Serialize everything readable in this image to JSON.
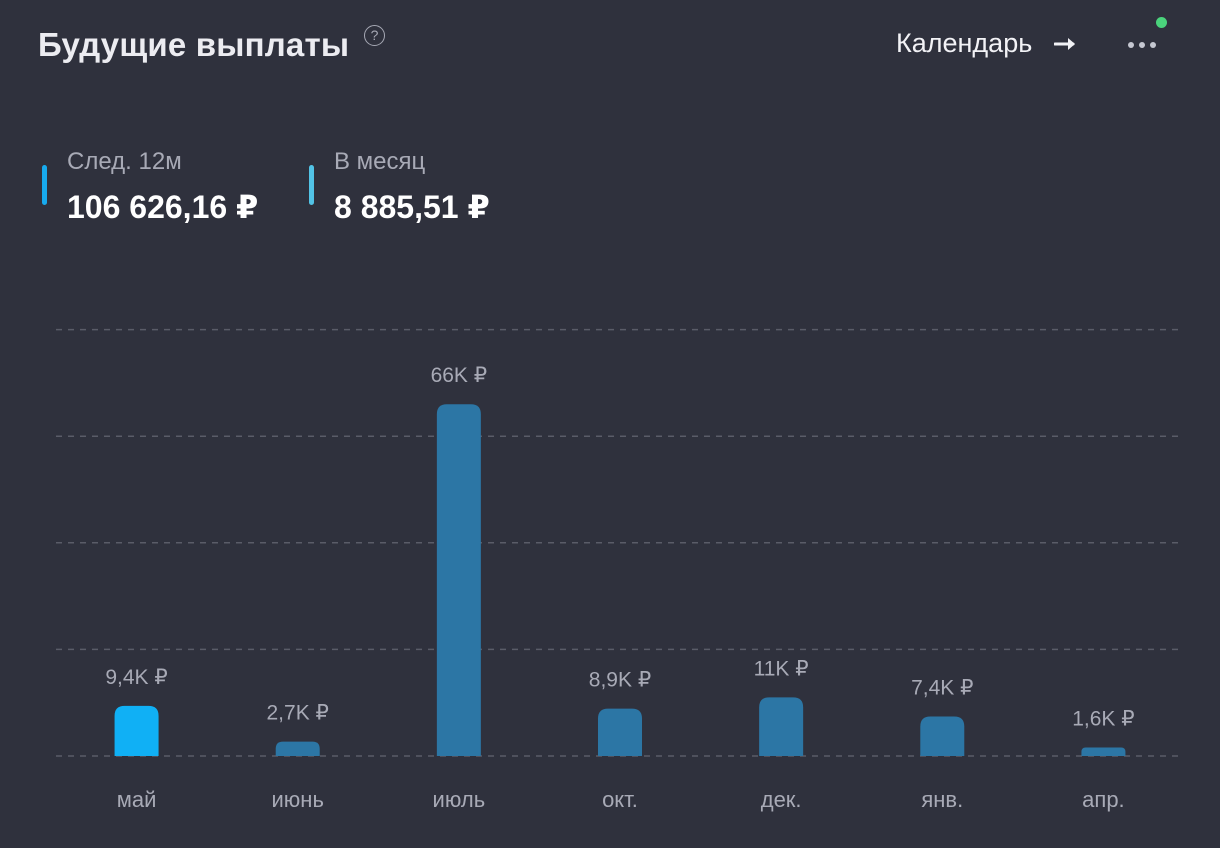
{
  "header": {
    "title": "Будущие выплаты",
    "help_icon": "question-circle-icon",
    "help_glyph": "?",
    "calendar_label": "Календарь",
    "calendar_icon": "arrow-right-icon",
    "more_icon": "more-horizontal-icon",
    "notify_color": "#4ad37c"
  },
  "stats": {
    "next12": {
      "caption": "След. 12м",
      "value": "106 626,16 ₽",
      "color": "#17aaee"
    },
    "month": {
      "caption": "В месяц",
      "value": "8 885,51 ₽",
      "color": "#52c3e6"
    }
  },
  "chart_data": {
    "type": "bar",
    "categories": [
      "май",
      "июнь",
      "июль",
      "окт.",
      "дек.",
      "янв.",
      "апр."
    ],
    "values": [
      9400,
      2700,
      66000,
      8900,
      11000,
      7400,
      1600
    ],
    "value_labels": [
      "9,4K ₽",
      "2,7K ₽",
      "66K ₽",
      "8,9K ₽",
      "11K ₽",
      "7,4K ₽",
      "1,6K ₽"
    ],
    "highlight_index": 0,
    "colors": {
      "bar": "#2c76a5",
      "highlight": "#10b0f5",
      "grid": "#5a5c68"
    },
    "ylim": [
      0,
      80000
    ],
    "grid": true
  }
}
